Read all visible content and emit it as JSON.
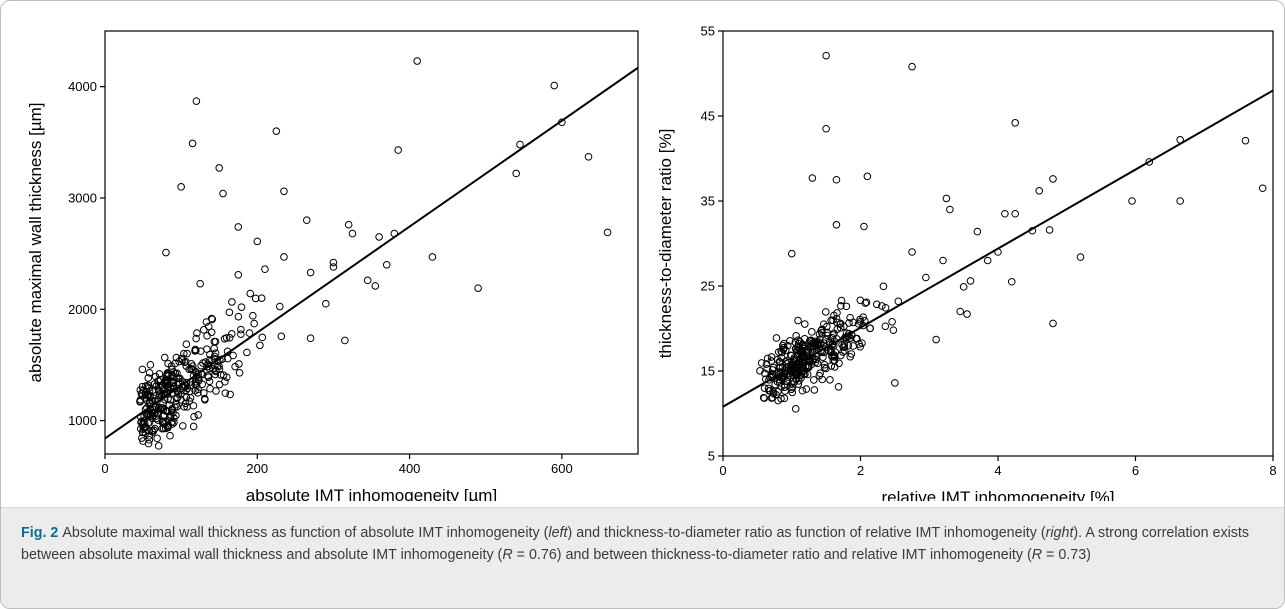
{
  "chart_data": [
    {
      "type": "scatter",
      "title": "",
      "xlabel": "absolute IMT inhomogeneity [µm]",
      "ylabel": "absolute maximal wall thickness [µm]",
      "xlim": [
        0,
        700
      ],
      "ylim": [
        700,
        4500
      ],
      "xticks": [
        0,
        200,
        400,
        600
      ],
      "yticks": [
        1000,
        2000,
        3000,
        4000
      ],
      "grid": false,
      "legend": "none",
      "fit_line": {
        "x": [
          0,
          700
        ],
        "y": [
          840,
          4170
        ]
      },
      "outliers": [
        {
          "x": 410,
          "y": 4230
        },
        {
          "x": 590,
          "y": 4010
        },
        {
          "x": 120,
          "y": 3870
        },
        {
          "x": 600,
          "y": 3680
        },
        {
          "x": 225,
          "y": 3600
        },
        {
          "x": 115,
          "y": 3490
        },
        {
          "x": 545,
          "y": 3480
        },
        {
          "x": 385,
          "y": 3430
        },
        {
          "x": 635,
          "y": 3370
        },
        {
          "x": 150,
          "y": 3270
        },
        {
          "x": 540,
          "y": 3220
        },
        {
          "x": 100,
          "y": 3100
        },
        {
          "x": 155,
          "y": 3040
        },
        {
          "x": 235,
          "y": 3060
        },
        {
          "x": 265,
          "y": 2800
        },
        {
          "x": 320,
          "y": 2760
        },
        {
          "x": 175,
          "y": 2740
        },
        {
          "x": 660,
          "y": 2690
        },
        {
          "x": 380,
          "y": 2680
        },
        {
          "x": 325,
          "y": 2680
        },
        {
          "x": 360,
          "y": 2650
        },
        {
          "x": 80,
          "y": 2510
        },
        {
          "x": 430,
          "y": 2470
        },
        {
          "x": 235,
          "y": 2470
        },
        {
          "x": 300,
          "y": 2420
        },
        {
          "x": 370,
          "y": 2400
        },
        {
          "x": 210,
          "y": 2360
        },
        {
          "x": 300,
          "y": 2380
        },
        {
          "x": 490,
          "y": 2190
        },
        {
          "x": 345,
          "y": 2260
        },
        {
          "x": 315,
          "y": 1720
        },
        {
          "x": 270,
          "y": 1740
        },
        {
          "x": 200,
          "y": 2610
        },
        {
          "x": 175,
          "y": 2310
        },
        {
          "x": 270,
          "y": 2330
        },
        {
          "x": 125,
          "y": 2230
        },
        {
          "x": 290,
          "y": 2050
        },
        {
          "x": 355,
          "y": 2210
        }
      ],
      "cluster": {
        "center": [
          90,
          1200
        ],
        "spread": [
          55,
          320
        ],
        "count": 330
      }
    },
    {
      "type": "scatter",
      "title": "",
      "xlabel": "relative IMT inhomogeneity [%]",
      "ylabel": "thickness-to-diameter ratio [%]",
      "xlim": [
        0,
        8
      ],
      "ylim": [
        5,
        55
      ],
      "xticks": [
        0,
        2,
        4,
        6,
        8
      ],
      "yticks": [
        5,
        15,
        25,
        35,
        45,
        55
      ],
      "grid": false,
      "legend": "none",
      "fit_line": {
        "x": [
          0,
          8
        ],
        "y": [
          10.8,
          48
        ]
      },
      "outliers": [
        {
          "x": 1.5,
          "y": 52.1
        },
        {
          "x": 2.75,
          "y": 50.8
        },
        {
          "x": 1.5,
          "y": 43.5
        },
        {
          "x": 4.25,
          "y": 44.2
        },
        {
          "x": 6.65,
          "y": 42.2
        },
        {
          "x": 7.6,
          "y": 42.1
        },
        {
          "x": 6.2,
          "y": 39.6
        },
        {
          "x": 7.85,
          "y": 36.5
        },
        {
          "x": 5.95,
          "y": 35.0
        },
        {
          "x": 6.65,
          "y": 35.0
        },
        {
          "x": 4.8,
          "y": 37.6
        },
        {
          "x": 4.6,
          "y": 36.2
        },
        {
          "x": 1.3,
          "y": 37.7
        },
        {
          "x": 1.65,
          "y": 37.5
        },
        {
          "x": 2.1,
          "y": 37.9
        },
        {
          "x": 3.25,
          "y": 35.3
        },
        {
          "x": 3.3,
          "y": 34.0
        },
        {
          "x": 4.1,
          "y": 33.5
        },
        {
          "x": 4.25,
          "y": 33.5
        },
        {
          "x": 3.7,
          "y": 31.4
        },
        {
          "x": 4.5,
          "y": 31.5
        },
        {
          "x": 4.75,
          "y": 31.6
        },
        {
          "x": 5.2,
          "y": 28.4
        },
        {
          "x": 4.2,
          "y": 25.5
        },
        {
          "x": 4.8,
          "y": 20.6
        },
        {
          "x": 2.5,
          "y": 13.6
        },
        {
          "x": 3.45,
          "y": 22.0
        },
        {
          "x": 3.55,
          "y": 21.7
        },
        {
          "x": 3.5,
          "y": 24.9
        },
        {
          "x": 2.75,
          "y": 29.0
        },
        {
          "x": 1.65,
          "y": 32.2
        },
        {
          "x": 2.05,
          "y": 32.0
        },
        {
          "x": 1.0,
          "y": 28.8
        },
        {
          "x": 3.85,
          "y": 28.0
        },
        {
          "x": 3.2,
          "y": 28.0
        },
        {
          "x": 3.6,
          "y": 25.6
        },
        {
          "x": 2.55,
          "y": 23.2
        },
        {
          "x": 2.95,
          "y": 26.0
        },
        {
          "x": 3.1,
          "y": 18.7
        },
        {
          "x": 4.0,
          "y": 29.0
        }
      ],
      "cluster": {
        "center": [
          1.2,
          15.0
        ],
        "spread": [
          0.5,
          3.2
        ],
        "count": 330
      }
    }
  ],
  "caption": {
    "label": "Fig. 2",
    "parts": [
      {
        "text": "Absolute maximal wall thickness as function of absolute IMT inhomogeneity (",
        "style": "normal"
      },
      {
        "text": "left",
        "style": "italic"
      },
      {
        "text": ") and thickness-to-diameter ratio as function of relative IMT inhomogeneity (",
        "style": "normal"
      },
      {
        "text": "right",
        "style": "italic"
      },
      {
        "text": "). A strong correlation exists between absolute maximal wall thickness and absolute IMT inhomogeneity (",
        "style": "normal"
      },
      {
        "text": "R",
        "style": "italic"
      },
      {
        "text": " = 0.76) and between thickness-to-diameter ratio and relative IMT inhomogeneity (",
        "style": "normal"
      },
      {
        "text": "R",
        "style": "italic"
      },
      {
        "text": " = 0.73)",
        "style": "normal"
      }
    ]
  },
  "colors": {
    "marker": "#000000",
    "axis": "#000000",
    "caption_label": "#0a6f8f",
    "caption_text": "#3b3b3b",
    "caption_background": "#ececec"
  }
}
